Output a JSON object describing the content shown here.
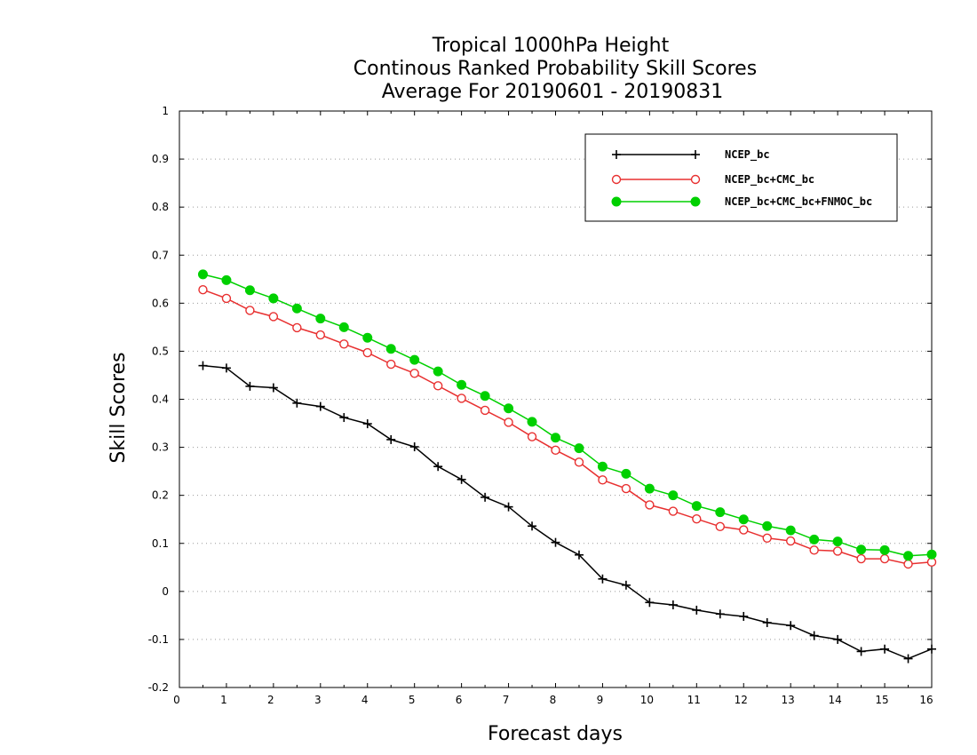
{
  "chart_data": {
    "type": "line",
    "title": [
      "Tropical 1000hPa Height",
      "Continous Ranked Probability Skill Scores",
      "Average For 20190601 - 20190831"
    ],
    "xlabel": "Forecast days",
    "ylabel": "Skill Scores",
    "xlim": [
      0,
      16
    ],
    "ylim": [
      -0.2,
      1
    ],
    "xticks": [
      "0",
      "1",
      "2",
      "3",
      "4",
      "5",
      "6",
      "7",
      "8",
      "9",
      "10",
      "11",
      "12",
      "13",
      "14",
      "15",
      "16"
    ],
    "yticks": [
      "-0.2",
      "-0.1",
      "0",
      "0.1",
      "0.2",
      "0.3",
      "0.4",
      "0.5",
      "0.6",
      "0.7",
      "0.8",
      "0.9",
      "1"
    ],
    "ytick_values": [
      -0.2,
      -0.1,
      0,
      0.1,
      0.2,
      0.3,
      0.4,
      0.5,
      0.6,
      0.7,
      0.8,
      0.9,
      1
    ],
    "grid": true,
    "legend_position": "top-right",
    "x": [
      0.5,
      1,
      1.5,
      2,
      2.5,
      3,
      3.5,
      4,
      4.5,
      5,
      5.5,
      6,
      6.5,
      7,
      7.5,
      8,
      8.5,
      9,
      9.5,
      10,
      10.5,
      11,
      11.5,
      12,
      12.5,
      13,
      13.5,
      14,
      14.5,
      15,
      15.5,
      16
    ],
    "series": [
      {
        "name": "NCEP_bc",
        "color": "#000000",
        "marker": "plus",
        "values": [
          0.47,
          0.465,
          0.427,
          0.424,
          0.392,
          0.385,
          0.362,
          0.349,
          0.316,
          0.301,
          0.26,
          0.233,
          0.196,
          0.176,
          0.136,
          0.102,
          0.076,
          0.026,
          0.013,
          -0.023,
          -0.028,
          -0.039,
          -0.047,
          -0.052,
          -0.065,
          -0.071,
          -0.092,
          -0.1,
          -0.125,
          -0.12,
          -0.14,
          -0.12
        ]
      },
      {
        "name": "NCEP_bc+CMC_bc",
        "color": "#e83030",
        "marker": "open-circle",
        "values": [
          0.628,
          0.61,
          0.585,
          0.572,
          0.549,
          0.534,
          0.515,
          0.497,
          0.473,
          0.454,
          0.428,
          0.402,
          0.377,
          0.352,
          0.322,
          0.294,
          0.269,
          0.232,
          0.214,
          0.18,
          0.167,
          0.151,
          0.135,
          0.128,
          0.111,
          0.105,
          0.086,
          0.084,
          0.068,
          0.068,
          0.057,
          0.061
        ]
      },
      {
        "name": "NCEP_bc+CMC_bc+FNMOC_bc",
        "color": "#00d000",
        "marker": "filled-circle",
        "values": [
          0.66,
          0.648,
          0.627,
          0.61,
          0.589,
          0.568,
          0.55,
          0.528,
          0.505,
          0.482,
          0.458,
          0.43,
          0.407,
          0.381,
          0.353,
          0.32,
          0.298,
          0.26,
          0.245,
          0.214,
          0.2,
          0.178,
          0.165,
          0.15,
          0.136,
          0.127,
          0.108,
          0.104,
          0.087,
          0.086,
          0.074,
          0.077
        ]
      }
    ]
  }
}
